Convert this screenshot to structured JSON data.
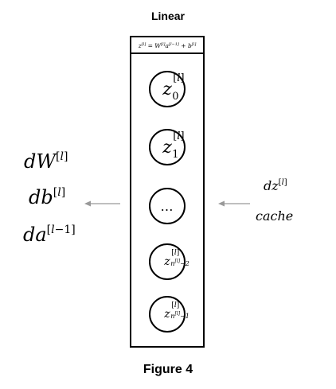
{
  "diagram": {
    "title": "Linear",
    "caption": "Figure 4",
    "formula": "z[l] = W[l]a[l-1] + b[l]",
    "nodes": [
      {
        "var": "z",
        "sup": "[l]",
        "sub": "0"
      },
      {
        "var": "z",
        "sup": "[l]",
        "sub": "1"
      },
      {
        "var": "…"
      },
      {
        "var": "z",
        "sup": "[l]",
        "sub": "n[l]−2"
      },
      {
        "var": "z",
        "sup": "[l]",
        "sub": "n[l]−1"
      }
    ],
    "outputs_left": [
      "dW[l]",
      "db[l]",
      "da[l−1]"
    ],
    "inputs_right": [
      "dz[l]",
      "cache"
    ],
    "colors": {
      "stroke": "#000000",
      "arrow": "#999999",
      "background": "#ffffff"
    }
  }
}
